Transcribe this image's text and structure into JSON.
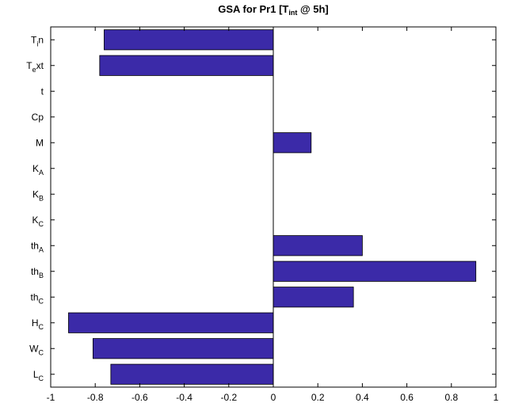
{
  "chart_data": {
    "type": "bar",
    "orientation": "horizontal",
    "title": {
      "main": "GSA for Pr1 [T",
      "sub": "int",
      "rest": " @ 5h]"
    },
    "categories": [
      {
        "base": "T",
        "sub": "i",
        "tail": "n"
      },
      {
        "base": "T",
        "sub": "e",
        "tail": "xt"
      },
      {
        "base": "t",
        "sub": "",
        "tail": ""
      },
      {
        "base": "Cp",
        "sub": "",
        "tail": ""
      },
      {
        "base": "M",
        "sub": "",
        "tail": ""
      },
      {
        "base": "K",
        "sub": "A",
        "tail": ""
      },
      {
        "base": "K",
        "sub": "B",
        "tail": ""
      },
      {
        "base": "K",
        "sub": "C",
        "tail": ""
      },
      {
        "base": "th",
        "sub": "A",
        "tail": ""
      },
      {
        "base": "th",
        "sub": "B",
        "tail": ""
      },
      {
        "base": "th",
        "sub": "C",
        "tail": ""
      },
      {
        "base": "H",
        "sub": "C",
        "tail": ""
      },
      {
        "base": "W",
        "sub": "C",
        "tail": ""
      },
      {
        "base": "L",
        "sub": "C",
        "tail": ""
      }
    ],
    "values": [
      -0.76,
      -0.78,
      0,
      0,
      0.17,
      0,
      0,
      0,
      0.4,
      0.91,
      0.36,
      -0.92,
      -0.81,
      -0.73
    ],
    "xlim": [
      -1,
      1
    ],
    "xticks": [
      "-1",
      "-0.8",
      "-0.6",
      "-0.4",
      "-0.2",
      "0",
      "0.2",
      "0.4",
      "0.6",
      "0.8",
      "1"
    ],
    "bar_color": "#3b2aa8",
    "grid": false,
    "xlabel": "",
    "ylabel": ""
  }
}
